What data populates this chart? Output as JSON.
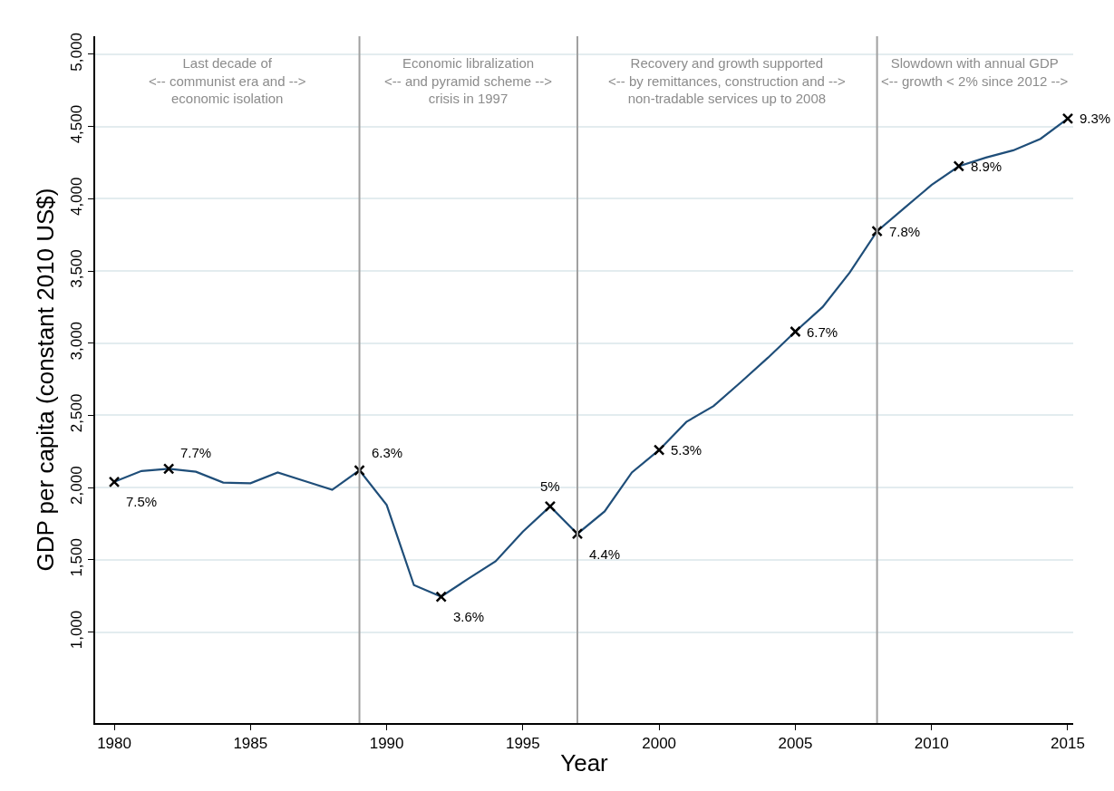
{
  "chart_data": {
    "type": "line",
    "xlabel": "Year",
    "ylabel": "GDP per capita (constant 2010 US$)",
    "x": [
      1980,
      1981,
      1982,
      1983,
      1984,
      1985,
      1986,
      1987,
      1988,
      1989,
      1990,
      1991,
      1992,
      1993,
      1994,
      1995,
      1996,
      1997,
      1998,
      1999,
      2000,
      2001,
      2002,
      2003,
      2004,
      2005,
      2006,
      2007,
      2008,
      2009,
      2010,
      2011,
      2012,
      2013,
      2014,
      2015
    ],
    "series": [
      {
        "color": "#1f4e79",
        "marker": "none",
        "values": [
          2040,
          2115,
          2130,
          2110,
          2035,
          2030,
          2105,
          2045,
          1985,
          2120,
          1880,
          1325,
          1245,
          1370,
          1490,
          1695,
          1870,
          1680,
          1835,
          2105,
          2260,
          2455,
          2565,
          2730,
          2900,
          3080,
          3250,
          3490,
          3775,
          3935,
          4095,
          4225,
          4285,
          4335,
          4415,
          4555
        ]
      },
      {
        "type": "scatter",
        "color": "#000000",
        "marker": "cross",
        "x": [
          1980,
          1982,
          1989,
          1992,
          1996,
          1997,
          2000,
          2005,
          2008,
          2011,
          2015
        ],
        "values": [
          2040,
          2130,
          2120,
          1245,
          1870,
          1680,
          2260,
          3080,
          3775,
          4225,
          4555
        ]
      }
    ],
    "xlim": [
      1979.3,
      2015.2
    ],
    "xticks": [
      1980,
      1985,
      1990,
      1995,
      2000,
      2005,
      2010,
      2015
    ],
    "ylim": [
      370,
      5125
    ],
    "yticks": [
      {
        "value": 1000,
        "label": "1,000"
      },
      {
        "value": 1500,
        "label": "1,500"
      },
      {
        "value": 2000,
        "label": "2,000"
      },
      {
        "value": 2500,
        "label": "2,500"
      },
      {
        "value": 3000,
        "label": "3,000"
      },
      {
        "value": 3500,
        "label": "3,500"
      },
      {
        "value": 4000,
        "label": "4,000"
      },
      {
        "value": 4500,
        "label": "4,500"
      },
      {
        "value": 5000,
        "label": "5,000"
      }
    ],
    "grid": "y",
    "ref_lines": [
      {
        "axis": "x",
        "value": 1989,
        "color": "#a0a0a0"
      },
      {
        "axis": "x",
        "value": 1997,
        "color": "#a0a0a0"
      },
      {
        "axis": "x",
        "value": 2008,
        "color": "#a0a0a0"
      }
    ],
    "annotations": [
      {
        "text": "7.5%",
        "x": 1980,
        "y": 2040
      },
      {
        "text": "7.7%",
        "x": 1982,
        "y": 2130
      },
      {
        "text": "6.3%",
        "x": 1989,
        "y": 2120
      },
      {
        "text": "3.6%",
        "x": 1992,
        "y": 1245
      },
      {
        "text": "5%",
        "x": 1996,
        "y": 1870
      },
      {
        "text": "4.4%",
        "x": 1997,
        "y": 1680
      },
      {
        "text": "5.3%",
        "x": 2000,
        "y": 2260
      },
      {
        "text": "6.7%",
        "x": 2005,
        "y": 3080
      },
      {
        "text": "7.8%",
        "x": 2008,
        "y": 3775
      },
      {
        "text": "8.9%",
        "x": 2011,
        "y": 4225
      },
      {
        "text": "9.3%",
        "x": 2015,
        "y": 4555
      },
      "Last decade of\n<-- communist era and -->\neconomic isolation",
      "Economic libralization\n<-- and pyramid scheme -->\ncrisis in 1997",
      "Recovery and growth supported\n<-- by remittances, construction and -->\nnon-tradable services up to 2008",
      "Slowdown with annual GDP\n<-- growth < 2% since 2012 -->"
    ]
  }
}
